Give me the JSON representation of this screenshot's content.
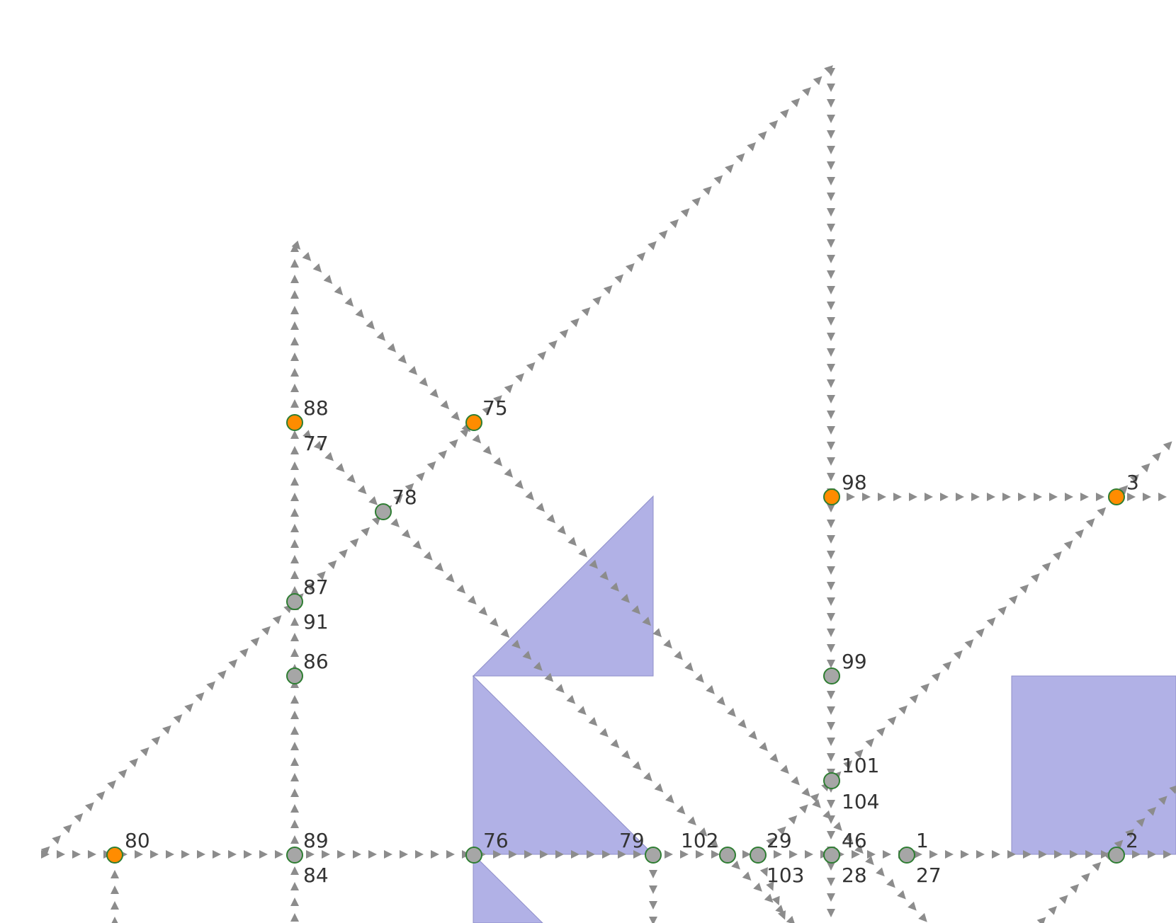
{
  "colors": {
    "background": "#ffffff",
    "edge_marker": "#8c8c8c",
    "shape_fill": "#b1b1e6",
    "shape_stroke": "#8f8fc9",
    "node_highlight": "#ff8c00",
    "node_default": "#a6a6a6",
    "node_stroke": "#2e7d32",
    "label_text": "#333333"
  },
  "nodes": [
    {
      "id": "n88",
      "labels": [
        "88",
        "77"
      ],
      "style": "highlight"
    },
    {
      "id": "n75",
      "labels": [
        "75"
      ],
      "style": "highlight"
    },
    {
      "id": "n78",
      "labels": [
        "78"
      ],
      "style": "default"
    },
    {
      "id": "n98",
      "labels": [
        "98"
      ],
      "style": "highlight"
    },
    {
      "id": "n3",
      "labels": [
        "3"
      ],
      "style": "highlight"
    },
    {
      "id": "n87",
      "labels": [
        "87",
        "91"
      ],
      "style": "default"
    },
    {
      "id": "n86",
      "labels": [
        "86"
      ],
      "style": "default"
    },
    {
      "id": "n99",
      "labels": [
        "99"
      ],
      "style": "default"
    },
    {
      "id": "n101",
      "labels": [
        "101",
        "104"
      ],
      "style": "default"
    },
    {
      "id": "n80",
      "labels": [
        "80"
      ],
      "style": "highlight"
    },
    {
      "id": "n89",
      "labels": [
        "89",
        "84"
      ],
      "style": "default"
    },
    {
      "id": "n76",
      "labels": [
        "76"
      ],
      "style": "default"
    },
    {
      "id": "n79",
      "labels": [
        "79"
      ],
      "style": "default"
    },
    {
      "id": "n102",
      "labels": [
        "102"
      ],
      "style": "default"
    },
    {
      "id": "n29",
      "labels": [
        "29",
        "103"
      ],
      "style": "default"
    },
    {
      "id": "n46",
      "labels": [
        "46",
        "28"
      ],
      "style": "default"
    },
    {
      "id": "n1",
      "labels": [
        "1",
        "27"
      ],
      "style": "default"
    },
    {
      "id": "n2",
      "labels": [
        "2"
      ],
      "style": "default"
    }
  ]
}
